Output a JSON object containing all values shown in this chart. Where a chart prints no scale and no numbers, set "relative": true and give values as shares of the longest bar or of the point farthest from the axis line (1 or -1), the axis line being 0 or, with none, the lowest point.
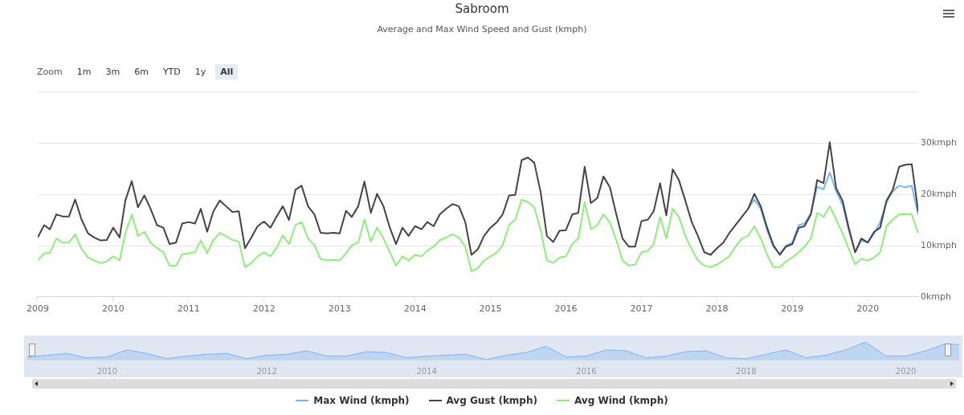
{
  "chart_data": [
    {
      "type": "line",
      "title": "Sabroom",
      "subtitle": "Average and Max Wind Speed and Gust (kmph)",
      "annotations": [
        "Zoom",
        "1m",
        "3m",
        "6m",
        "YTD",
        "1y",
        "All"
      ],
      "x": [
        "2009-01",
        "2009-02",
        "2009-03",
        "2009-04",
        "2009-05",
        "2009-06",
        "2009-07",
        "2009-08",
        "2009-09",
        "2009-10",
        "2009-11",
        "2009-12",
        "2010-01",
        "2010-02",
        "2010-03",
        "2010-04",
        "2010-05",
        "2010-06",
        "2010-07",
        "2010-08",
        "2010-09",
        "2010-10",
        "2010-11",
        "2010-12",
        "2011-01",
        "2011-02",
        "2011-03",
        "2011-04",
        "2011-05",
        "2011-06",
        "2011-07",
        "2011-08",
        "2011-09",
        "2011-10",
        "2011-11",
        "2011-12",
        "2012-01",
        "2012-02",
        "2012-03",
        "2012-04",
        "2012-05",
        "2012-06",
        "2012-07",
        "2012-08",
        "2012-09",
        "2012-10",
        "2012-11",
        "2012-12",
        "2013-01",
        "2013-02",
        "2013-03",
        "2013-04",
        "2013-05",
        "2013-06",
        "2013-07",
        "2013-08",
        "2013-09",
        "2013-10",
        "2013-11",
        "2013-12",
        "2014-01",
        "2014-02",
        "2014-03",
        "2014-04",
        "2014-05",
        "2014-06",
        "2014-07",
        "2014-08",
        "2014-09",
        "2014-10",
        "2014-11",
        "2014-12",
        "2015-01",
        "2015-02",
        "2015-03",
        "2015-04",
        "2015-05",
        "2015-06",
        "2015-07",
        "2015-08",
        "2015-09",
        "2015-10",
        "2015-11",
        "2015-12",
        "2016-01",
        "2016-02",
        "2016-03",
        "2016-04",
        "2016-05",
        "2016-06",
        "2016-07",
        "2016-08",
        "2016-09",
        "2016-10",
        "2016-11",
        "2016-12",
        "2017-01",
        "2017-02",
        "2017-03",
        "2017-04",
        "2017-05",
        "2017-06",
        "2017-07",
        "2017-08",
        "2017-09",
        "2017-10",
        "2017-11",
        "2017-12",
        "2018-01",
        "2018-02",
        "2018-03",
        "2018-04",
        "2018-05",
        "2018-06",
        "2018-07",
        "2018-08",
        "2018-09",
        "2018-10",
        "2018-11",
        "2018-12",
        "2019-01",
        "2019-02",
        "2019-03",
        "2019-04",
        "2019-05",
        "2019-06",
        "2019-07",
        "2019-08",
        "2019-09",
        "2019-10",
        "2019-11",
        "2019-12",
        "2020-01",
        "2020-02",
        "2020-03",
        "2020-04",
        "2020-05",
        "2020-06",
        "2020-07",
        "2020-08",
        "2020-09"
      ],
      "series": [
        {
          "name": "Max Wind (kmph)",
          "color": "#7cb5ec",
          "x": [
            "2018-06",
            "2018-07",
            "2018-08",
            "2018-09",
            "2018-10",
            "2018-11",
            "2018-12",
            "2019-01",
            "2019-02",
            "2019-03",
            "2019-04",
            "2019-05",
            "2019-06",
            "2019-07",
            "2019-08",
            "2019-09",
            "2019-10",
            "2019-11",
            "2019-12",
            "2020-01",
            "2020-02",
            "2020-03",
            "2020-04",
            "2020-05",
            "2020-06",
            "2020-07",
            "2020-08",
            "2020-09"
          ],
          "values": [
            17.2,
            19.0,
            17.2,
            13.0,
            9.8,
            8.4,
            10.0,
            10.6,
            14.0,
            14.3,
            16.4,
            21.5,
            21.0,
            24.3,
            20.6,
            18.0,
            13.0,
            8.7,
            11.0,
            10.6,
            12.4,
            14.6,
            18.5,
            20.6,
            21.7,
            21.4,
            21.7,
            16.0
          ]
        },
        {
          "name": "Avg Gust (kmph)",
          "color": "#434348",
          "values": [
            11.6,
            14.0,
            13.2,
            16.1,
            15.7,
            15.7,
            19.0,
            15.1,
            12.4,
            11.6,
            11.0,
            11.1,
            13.5,
            11.6,
            18.8,
            22.6,
            17.5,
            19.8,
            17.2,
            14.0,
            13.5,
            10.3,
            10.6,
            14.3,
            14.6,
            14.3,
            17.2,
            12.7,
            16.7,
            18.8,
            17.7,
            16.6,
            16.7,
            9.5,
            11.6,
            13.8,
            14.7,
            13.5,
            15.6,
            17.7,
            15.0,
            20.9,
            21.7,
            17.7,
            16.1,
            12.5,
            12.4,
            12.5,
            12.4,
            16.8,
            15.6,
            17.7,
            22.5,
            16.4,
            20.1,
            17.7,
            13.5,
            10.3,
            13.5,
            11.9,
            13.8,
            13.2,
            14.6,
            13.8,
            16.1,
            17.2,
            18.1,
            17.7,
            14.6,
            8.2,
            9.3,
            11.9,
            13.5,
            14.6,
            16.1,
            19.8,
            19.9,
            26.7,
            27.2,
            26.2,
            20.4,
            11.9,
            10.7,
            12.9,
            13.0,
            16.1,
            16.4,
            25.4,
            18.3,
            19.3,
            23.5,
            21.4,
            16.1,
            11.4,
            9.8,
            9.8,
            14.8,
            15.1,
            16.7,
            22.2,
            15.9,
            24.9,
            22.8,
            18.8,
            14.6,
            11.9,
            8.7,
            8.2,
            9.5,
            10.6,
            12.4,
            14.0,
            15.6,
            17.2,
            20.1,
            17.7,
            13.5,
            10.1,
            8.2,
            9.8,
            10.3,
            13.5,
            13.8,
            16.1,
            22.8,
            22.2,
            30.2,
            21.2,
            18.8,
            13.5,
            8.7,
            11.4,
            10.6,
            12.7,
            13.5,
            18.8,
            20.9,
            25.4,
            25.8,
            25.9,
            16.7
          ]
        },
        {
          "name": "Avg Wind (kmph)",
          "color": "#90ed7d",
          "values": [
            7.1,
            8.5,
            8.6,
            11.4,
            10.6,
            10.6,
            12.2,
            9.3,
            7.7,
            7.1,
            6.6,
            6.9,
            7.9,
            7.1,
            12.4,
            16.1,
            11.9,
            12.7,
            10.6,
            9.5,
            8.7,
            6.1,
            6.1,
            8.3,
            8.5,
            8.7,
            11.0,
            8.5,
            11.1,
            12.5,
            11.9,
            11.1,
            10.8,
            5.8,
            6.6,
            7.9,
            8.7,
            7.9,
            9.5,
            12.0,
            10.3,
            14.0,
            14.6,
            11.4,
            10.1,
            7.4,
            7.1,
            7.2,
            7.1,
            8.5,
            10.1,
            10.6,
            15.1,
            10.8,
            13.5,
            11.4,
            8.7,
            6.1,
            7.9,
            7.1,
            8.2,
            7.9,
            9.0,
            9.8,
            11.1,
            11.6,
            12.2,
            11.6,
            9.8,
            5.0,
            5.6,
            7.1,
            7.9,
            8.7,
            10.1,
            14.0,
            15.1,
            19.0,
            18.5,
            17.5,
            13.0,
            7.1,
            6.6,
            7.7,
            7.9,
            10.3,
            11.4,
            18.5,
            13.2,
            14.0,
            16.1,
            14.5,
            11.1,
            7.1,
            6.1,
            6.3,
            8.7,
            9.0,
            10.3,
            15.6,
            11.4,
            17.2,
            15.6,
            11.9,
            9.3,
            7.1,
            6.1,
            5.8,
            6.3,
            7.1,
            7.9,
            9.8,
            11.4,
            11.9,
            13.8,
            11.4,
            8.2,
            5.8,
            5.8,
            6.9,
            7.7,
            8.7,
            9.8,
            11.4,
            16.4,
            15.6,
            17.7,
            15.1,
            12.4,
            9.3,
            6.3,
            7.4,
            7.1,
            7.7,
            8.7,
            13.8,
            15.1,
            16.1,
            16.1,
            16.1,
            12.4
          ]
        }
      ],
      "xlim": [
        "2009-01",
        "2020-09"
      ],
      "xticks": [
        "2009",
        "2010",
        "2011",
        "2012",
        "2013",
        "2014",
        "2015",
        "2016",
        "2017",
        "2018",
        "2019",
        "2020"
      ],
      "ylim": [
        0,
        40
      ],
      "yticks": [
        {
          "value": 0,
          "label": "0kmph"
        },
        {
          "value": 10,
          "label": "10kmph"
        },
        {
          "value": 20,
          "label": "20kmph"
        },
        {
          "value": 30,
          "label": "30kmph"
        },
        {
          "value": 40,
          "label": null
        }
      ],
      "grid": "y",
      "legend": "bottom",
      "marker": "none"
    },
    {
      "type": "area",
      "relative": true,
      "x": [
        "2009-01",
        "2009-04",
        "2009-07",
        "2009-10",
        "2010-01",
        "2010-04",
        "2010-07",
        "2010-10",
        "2011-01",
        "2011-04",
        "2011-07",
        "2011-10",
        "2012-01",
        "2012-04",
        "2012-07",
        "2012-10",
        "2013-01",
        "2013-04",
        "2013-07",
        "2013-10",
        "2014-01",
        "2014-04",
        "2014-07",
        "2014-10",
        "2015-01",
        "2015-04",
        "2015-07",
        "2015-10",
        "2016-01",
        "2016-04",
        "2016-07",
        "2016-10",
        "2017-01",
        "2017-04",
        "2017-07",
        "2017-10",
        "2018-01",
        "2018-04",
        "2018-07",
        "2018-10",
        "2019-01",
        "2019-04",
        "2019-07",
        "2019-10",
        "2020-01",
        "2020-04",
        "2020-07",
        "2020-09"
      ],
      "series": [
        {
          "color": "#7cb5ec",
          "values": [
            0.15,
            0.25,
            0.35,
            0.1,
            0.15,
            0.55,
            0.35,
            0.05,
            0.2,
            0.3,
            0.35,
            0.05,
            0.25,
            0.3,
            0.5,
            0.2,
            0.2,
            0.45,
            0.4,
            0.1,
            0.2,
            0.25,
            0.3,
            0.0,
            0.25,
            0.4,
            0.75,
            0.15,
            0.2,
            0.55,
            0.5,
            0.1,
            0.2,
            0.45,
            0.5,
            0.1,
            0.05,
            0.3,
            0.55,
            0.1,
            0.25,
            0.55,
            1,
            0.2,
            0.2,
            0.5,
            0.9,
            0.85
          ]
        }
      ],
      "xlim": [
        "2009-01",
        "2020-09"
      ],
      "xticks": [
        "2010",
        "2012",
        "2014",
        "2016",
        "2018",
        "2020"
      ],
      "grid": "x",
      "marker": "none"
    }
  ]
}
